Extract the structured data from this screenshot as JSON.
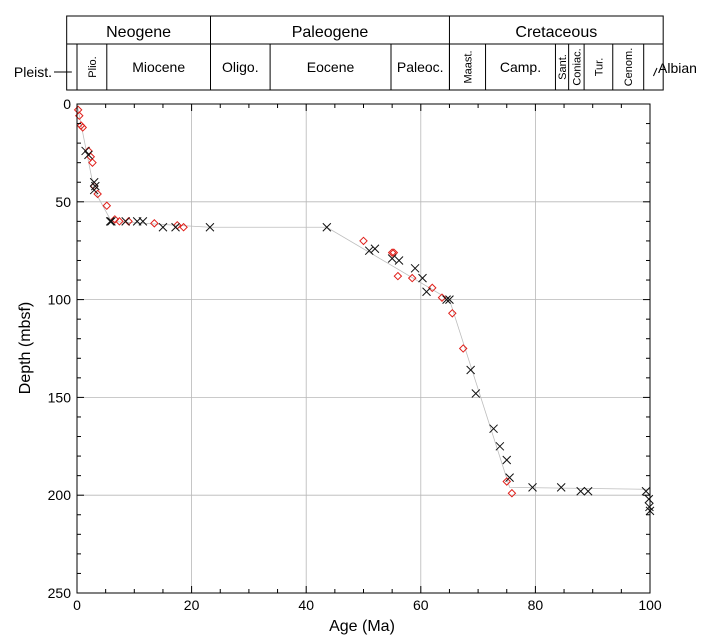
{
  "chart_data": {
    "type": "scatter",
    "xlabel": "Age (Ma)",
    "ylabel": "Depth (mbsf)",
    "xlim": [
      0,
      100
    ],
    "ylim": [
      250,
      0
    ],
    "y_inverted": true,
    "x_ticks": [
      "0",
      "20",
      "40",
      "60",
      "80",
      "100"
    ],
    "y_ticks": [
      "0",
      "50",
      "100",
      "150",
      "200",
      "250"
    ],
    "grid": true,
    "series": [
      {
        "marker": "diamond",
        "color": "#e0201b",
        "points": [
          [
            0.2,
            3
          ],
          [
            0.4,
            6
          ],
          [
            0.7,
            11
          ],
          [
            1.0,
            12
          ],
          [
            2.0,
            24
          ],
          [
            2.4,
            27
          ],
          [
            2.7,
            30
          ],
          [
            3.0,
            42
          ],
          [
            3.6,
            46
          ],
          [
            5.2,
            52
          ],
          [
            6.6,
            59
          ],
          [
            7.4,
            60
          ],
          [
            9.0,
            60
          ],
          [
            13.5,
            61
          ],
          [
            17.5,
            62
          ],
          [
            18.6,
            63
          ],
          [
            50.0,
            70
          ],
          [
            55.0,
            76
          ],
          [
            55.3,
            76
          ],
          [
            56.0,
            88
          ],
          [
            58.5,
            89
          ],
          [
            62.0,
            94
          ],
          [
            63.7,
            99
          ],
          [
            65.5,
            107
          ],
          [
            67.4,
            125
          ],
          [
            75.0,
            193
          ],
          [
            75.9,
            199
          ]
        ]
      },
      {
        "marker": "x",
        "color": "#111111",
        "points": [
          [
            1.5,
            24
          ],
          [
            2.0,
            26
          ],
          [
            3.0,
            40
          ],
          [
            3.2,
            42
          ],
          [
            3.0,
            44
          ],
          [
            5.8,
            60
          ],
          [
            6.0,
            60
          ],
          [
            8.5,
            60
          ],
          [
            10.5,
            60
          ],
          [
            11.5,
            60
          ],
          [
            15.0,
            63
          ],
          [
            17.2,
            63
          ],
          [
            23.2,
            63
          ],
          [
            43.6,
            63
          ],
          [
            51.0,
            75
          ],
          [
            52.0,
            74
          ],
          [
            55.0,
            79
          ],
          [
            56.2,
            80
          ],
          [
            59.0,
            84
          ],
          [
            60.3,
            89
          ],
          [
            61.0,
            96
          ],
          [
            64.5,
            100
          ],
          [
            65.0,
            100
          ],
          [
            68.7,
            136
          ],
          [
            69.6,
            148
          ],
          [
            72.7,
            166
          ],
          [
            73.8,
            175
          ],
          [
            75.0,
            182
          ],
          [
            75.5,
            191
          ],
          [
            79.5,
            196
          ],
          [
            84.5,
            196
          ],
          [
            87.9,
            198
          ],
          [
            89.2,
            198
          ],
          [
            99.3,
            198
          ],
          [
            99.8,
            202
          ],
          [
            99.9,
            206
          ],
          [
            100.0,
            208
          ]
        ]
      }
    ],
    "trend_line": [
      [
        0,
        0
      ],
      [
        3,
        44
      ],
      [
        6,
        60
      ],
      [
        23.2,
        63
      ],
      [
        43.6,
        63
      ],
      [
        65,
        100
      ],
      [
        75.5,
        196
      ],
      [
        100,
        197
      ]
    ]
  },
  "timescale": {
    "periods": [
      {
        "label": "Neogene",
        "start": -1.8,
        "end": 23.3
      },
      {
        "label": "Paleogene",
        "start": 23.3,
        "end": 65.0
      },
      {
        "label": "Cretaceous",
        "start": 65.0,
        "end": 102.3
      }
    ],
    "epochs": [
      {
        "label": "",
        "start": -1.8,
        "end": 0.0,
        "rotate": false
      },
      {
        "label": "Plio.",
        "start": 0.0,
        "end": 5.2,
        "rotate": true
      },
      {
        "label": "Miocene",
        "start": 5.2,
        "end": 23.3,
        "rotate": false
      },
      {
        "label": "Oligo.",
        "start": 23.3,
        "end": 33.7,
        "rotate": false
      },
      {
        "label": "Eocene",
        "start": 33.7,
        "end": 54.8,
        "rotate": false
      },
      {
        "label": "Paleoc.",
        "start": 54.8,
        "end": 65.0,
        "rotate": false
      },
      {
        "label": "Maast.",
        "start": 65.0,
        "end": 71.3,
        "rotate": true
      },
      {
        "label": "Camp.",
        "start": 71.3,
        "end": 83.5,
        "rotate": false
      },
      {
        "label": "Sant.",
        "start": 83.5,
        "end": 85.8,
        "rotate": true
      },
      {
        "label": "Coniac.",
        "start": 85.8,
        "end": 88.5,
        "rotate": true
      },
      {
        "label": "Tur.",
        "start": 88.5,
        "end": 93.5,
        "rotate": true
      },
      {
        "label": "Cenom.",
        "start": 93.5,
        "end": 98.9,
        "rotate": true
      },
      {
        "label": "",
        "start": 98.9,
        "end": 102.3,
        "rotate": false
      }
    ],
    "pleistocene_label": "Pleist.",
    "albian_label": "Albian"
  }
}
